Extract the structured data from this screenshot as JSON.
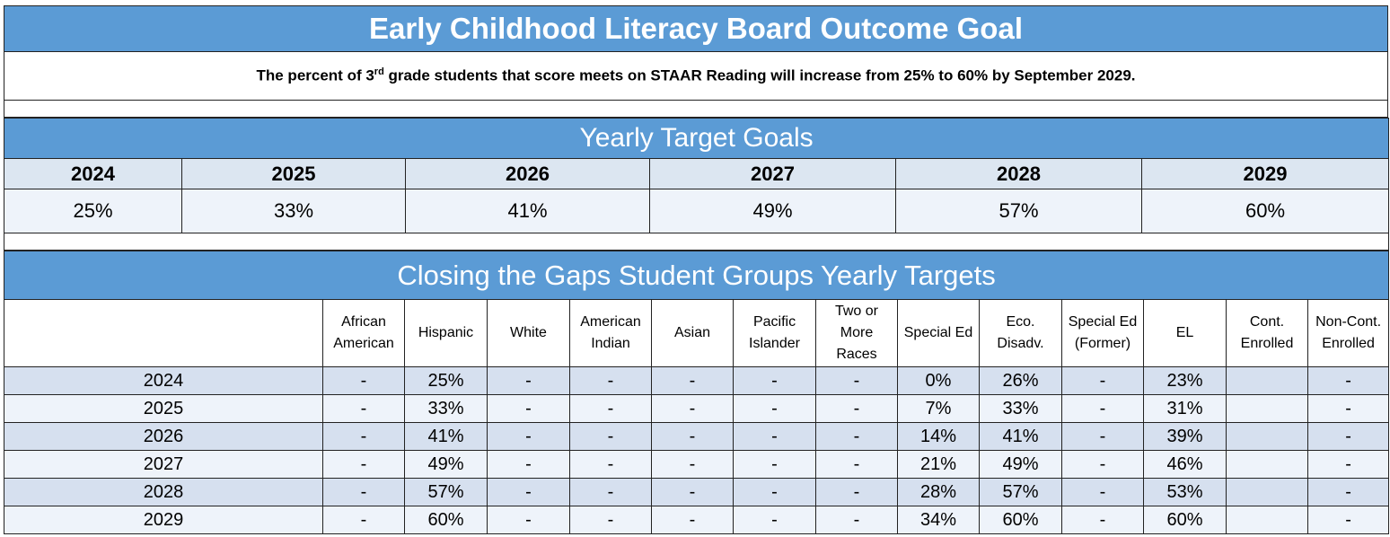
{
  "outcome": {
    "title": "Early Childhood Literacy Board Outcome Goal",
    "statement_prefix": "The percent of 3",
    "statement_sup": "rd",
    "statement_suffix": " grade students that score meets on STAAR Reading will increase from 25% to 60% by September 2029."
  },
  "yearly_targets": {
    "title": "Yearly Target Goals",
    "years": [
      "2024",
      "2025",
      "2026",
      "2027",
      "2028",
      "2029"
    ],
    "values": [
      "25%",
      "33%",
      "41%",
      "49%",
      "57%",
      "60%"
    ]
  },
  "closing_gaps": {
    "title": "Closing the Gaps Student Groups Yearly Targets",
    "corner": "",
    "columns": [
      [
        "African",
        "American"
      ],
      [
        "Hispanic"
      ],
      [
        "White"
      ],
      [
        "American",
        "Indian"
      ],
      [
        "Asian"
      ],
      [
        "Pacific",
        "Islander"
      ],
      [
        "Two or",
        "More",
        "Races"
      ],
      [
        "Special Ed"
      ],
      [
        "Eco.",
        "Disadv."
      ],
      [
        "Special  Ed",
        "(Former)"
      ],
      [
        "EL"
      ],
      [
        "Cont.",
        "Enrolled"
      ],
      [
        "Non-Cont.",
        "Enrolled"
      ]
    ],
    "rows": [
      {
        "year": "2024",
        "cells": [
          "-",
          "25%",
          "-",
          "-",
          "-",
          "-",
          "-",
          "0%",
          "26%",
          "-",
          "23%",
          "",
          "-"
        ]
      },
      {
        "year": "2025",
        "cells": [
          "-",
          "33%",
          "-",
          "-",
          "-",
          "-",
          "-",
          "7%",
          "33%",
          "-",
          "31%",
          "",
          "-"
        ]
      },
      {
        "year": "2026",
        "cells": [
          "-",
          "41%",
          "-",
          "-",
          "-",
          "-",
          "-",
          "14%",
          "41%",
          "-",
          "39%",
          "",
          "-"
        ]
      },
      {
        "year": "2027",
        "cells": [
          "-",
          "49%",
          "-",
          "-",
          "-",
          "-",
          "-",
          "21%",
          "49%",
          "-",
          "46%",
          "",
          "-"
        ]
      },
      {
        "year": "2028",
        "cells": [
          "-",
          "57%",
          "-",
          "-",
          "-",
          "-",
          "-",
          "28%",
          "57%",
          "-",
          "53%",
          "",
          "-"
        ]
      },
      {
        "year": "2029",
        "cells": [
          "-",
          "60%",
          "-",
          "-",
          "-",
          "-",
          "-",
          "34%",
          "60%",
          "-",
          "60%",
          "",
          "-"
        ]
      }
    ]
  }
}
